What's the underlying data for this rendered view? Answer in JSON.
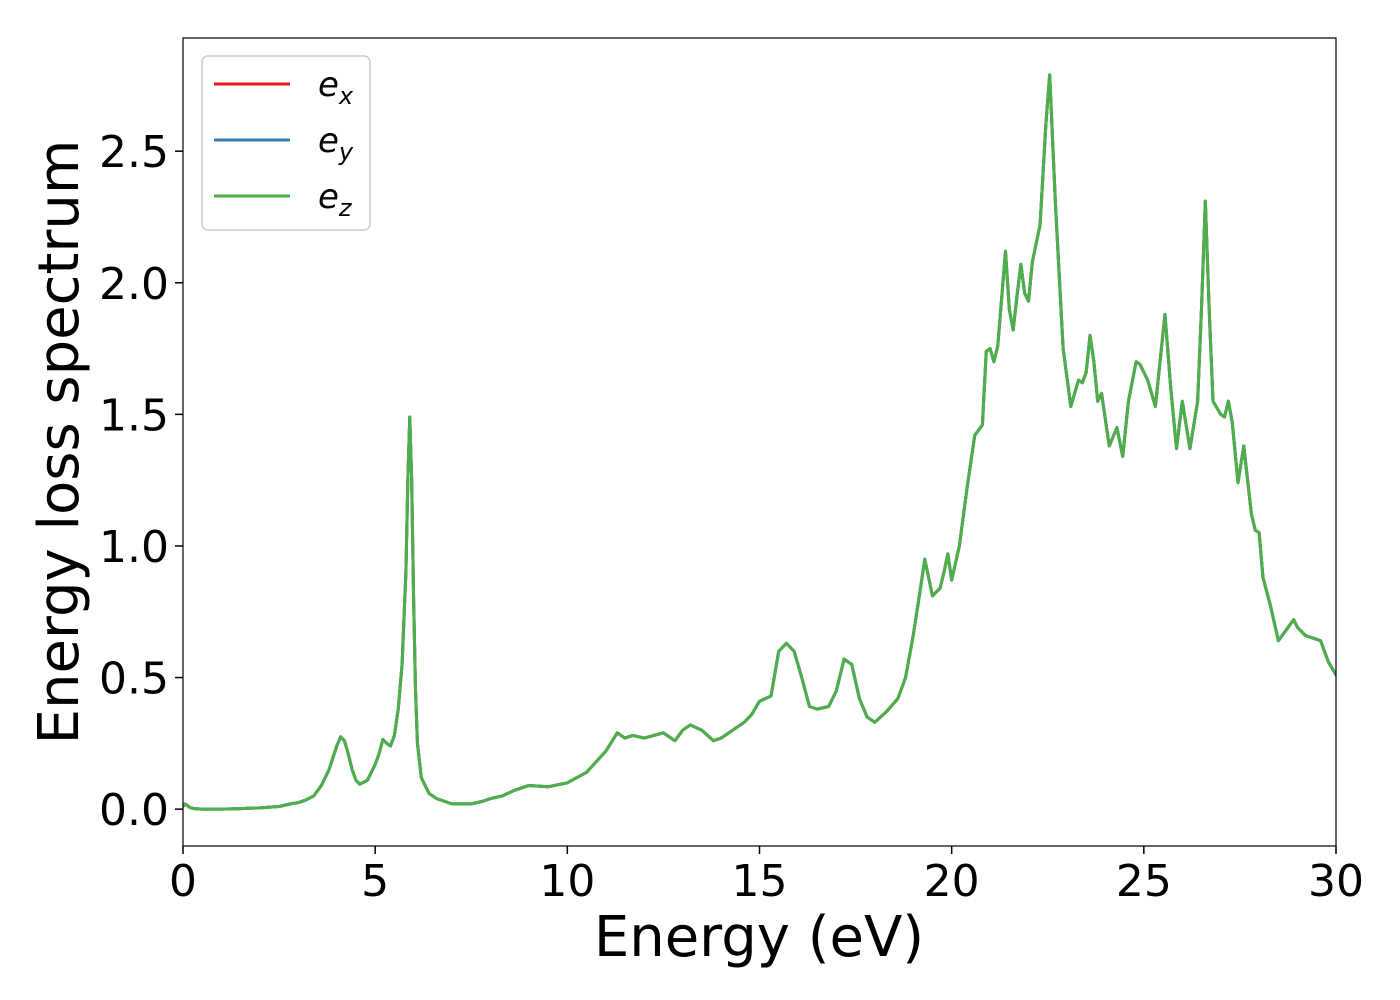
{
  "chart_data": {
    "type": "line",
    "title": "",
    "xlabel": "Energy (eV)",
    "ylabel": "Energy loss spectrum",
    "xlim": [
      0,
      30
    ],
    "ylim": [
      -0.14,
      2.93
    ],
    "xticks": [
      0,
      5,
      10,
      15,
      20,
      25,
      30
    ],
    "xtick_labels": [
      "0",
      "5",
      "10",
      "15",
      "20",
      "25",
      "30"
    ],
    "yticks": [
      0.0,
      0.5,
      1.0,
      1.5,
      2.0,
      2.5
    ],
    "ytick_labels": [
      "0.0",
      "0.5",
      "1.0",
      "1.5",
      "2.0",
      "2.5"
    ],
    "grid": false,
    "legend_position": "top-left",
    "colors": {
      "ex": "#e41a1c",
      "ey": "#377eb8",
      "ez": "#4daf4a"
    },
    "series": [
      {
        "name": "e_x",
        "label_base": "e",
        "label_sub": "x",
        "color": "#e41a1c",
        "x": [
          0,
          0.05,
          0.1,
          0.2,
          0.3,
          0.5,
          1.0,
          1.5,
          2.0,
          2.5,
          2.8,
          3.0,
          3.2,
          3.4,
          3.6,
          3.8,
          4.0,
          4.1,
          4.2,
          4.3,
          4.4,
          4.5,
          4.6,
          4.8,
          5.0,
          5.1,
          5.2,
          5.3,
          5.4,
          5.5,
          5.6,
          5.7,
          5.8,
          5.85,
          5.9,
          5.95,
          6.0,
          6.05,
          6.1,
          6.2,
          6.4,
          6.6,
          7.0,
          7.5,
          7.8,
          8.0,
          8.3,
          8.6,
          9.0,
          9.5,
          10.0,
          10.5,
          11.0,
          11.3,
          11.5,
          11.7,
          12.0,
          12.5,
          12.8,
          13.0,
          13.2,
          13.5,
          13.8,
          14.0,
          14.3,
          14.6,
          14.8,
          15.0,
          15.3,
          15.5,
          15.7,
          15.9,
          16.1,
          16.3,
          16.5,
          16.8,
          17.0,
          17.2,
          17.4,
          17.6,
          17.8,
          18.0,
          18.3,
          18.6,
          18.8,
          19.0,
          19.2,
          19.3,
          19.5,
          19.7,
          19.8,
          19.9,
          20.0,
          20.2,
          20.4,
          20.6,
          20.8,
          20.9,
          21.0,
          21.1,
          21.2,
          21.4,
          21.5,
          21.6,
          21.7,
          21.8,
          21.9,
          22.0,
          22.1,
          22.3,
          22.45,
          22.55,
          22.7,
          22.9,
          23.1,
          23.3,
          23.4,
          23.5,
          23.6,
          23.7,
          23.8,
          23.9,
          24.1,
          24.3,
          24.45,
          24.6,
          24.8,
          24.9,
          25.1,
          25.3,
          25.55,
          25.7,
          25.85,
          26.0,
          26.2,
          26.4,
          26.5,
          26.6,
          26.7,
          26.8,
          27.0,
          27.1,
          27.2,
          27.3,
          27.45,
          27.6,
          27.8,
          27.9,
          28.0,
          28.1,
          28.3,
          28.5,
          28.7,
          28.9,
          29.0,
          29.2,
          29.4,
          29.6,
          29.8,
          30.0
        ],
        "y": [
          0.01,
          0.02,
          0.015,
          0.005,
          0.002,
          0.0,
          0.0,
          0.002,
          0.005,
          0.01,
          0.02,
          0.025,
          0.035,
          0.05,
          0.09,
          0.15,
          0.24,
          0.275,
          0.26,
          0.21,
          0.15,
          0.11,
          0.095,
          0.11,
          0.17,
          0.21,
          0.265,
          0.25,
          0.24,
          0.28,
          0.38,
          0.55,
          0.9,
          1.25,
          1.49,
          1.25,
          0.8,
          0.45,
          0.25,
          0.12,
          0.06,
          0.04,
          0.02,
          0.02,
          0.03,
          0.04,
          0.05,
          0.07,
          0.09,
          0.085,
          0.1,
          0.14,
          0.22,
          0.29,
          0.27,
          0.28,
          0.27,
          0.29,
          0.26,
          0.3,
          0.32,
          0.3,
          0.26,
          0.27,
          0.3,
          0.33,
          0.36,
          0.41,
          0.43,
          0.6,
          0.63,
          0.6,
          0.5,
          0.39,
          0.38,
          0.39,
          0.45,
          0.57,
          0.55,
          0.42,
          0.35,
          0.33,
          0.37,
          0.42,
          0.5,
          0.66,
          0.85,
          0.95,
          0.81,
          0.84,
          0.9,
          0.97,
          0.87,
          1.0,
          1.22,
          1.42,
          1.46,
          1.74,
          1.75,
          1.7,
          1.76,
          2.12,
          1.9,
          1.82,
          1.95,
          2.07,
          1.96,
          1.93,
          2.08,
          2.22,
          2.6,
          2.79,
          2.3,
          1.75,
          1.53,
          1.63,
          1.62,
          1.66,
          1.8,
          1.7,
          1.55,
          1.58,
          1.38,
          1.45,
          1.34,
          1.55,
          1.7,
          1.69,
          1.63,
          1.53,
          1.88,
          1.6,
          1.37,
          1.55,
          1.37,
          1.55,
          1.9,
          2.31,
          1.9,
          1.55,
          1.5,
          1.49,
          1.55,
          1.47,
          1.24,
          1.38,
          1.12,
          1.06,
          1.05,
          0.88,
          0.77,
          0.64,
          0.68,
          0.72,
          0.69,
          0.66,
          0.65,
          0.64,
          0.56,
          0.51
        ]
      },
      {
        "name": "e_y",
        "label_base": "e",
        "label_sub": "y",
        "color": "#377eb8",
        "x": [
          0,
          0.05,
          0.1,
          0.2,
          0.3,
          0.5,
          1.0,
          1.5,
          2.0,
          2.5,
          2.8,
          3.0,
          3.2,
          3.4,
          3.6,
          3.8,
          4.0,
          4.1,
          4.2,
          4.3,
          4.4,
          4.5,
          4.6,
          4.8,
          5.0,
          5.1,
          5.2,
          5.3,
          5.4,
          5.5,
          5.6,
          5.7,
          5.8,
          5.85,
          5.9,
          5.95,
          6.0,
          6.05,
          6.1,
          6.2,
          6.4,
          6.6,
          7.0,
          7.5,
          7.8,
          8.0,
          8.3,
          8.6,
          9.0,
          9.5,
          10.0,
          10.5,
          11.0,
          11.3,
          11.5,
          11.7,
          12.0,
          12.5,
          12.8,
          13.0,
          13.2,
          13.5,
          13.8,
          14.0,
          14.3,
          14.6,
          14.8,
          15.0,
          15.3,
          15.5,
          15.7,
          15.9,
          16.1,
          16.3,
          16.5,
          16.8,
          17.0,
          17.2,
          17.4,
          17.6,
          17.8,
          18.0,
          18.3,
          18.6,
          18.8,
          19.0,
          19.2,
          19.3,
          19.5,
          19.7,
          19.8,
          19.9,
          20.0,
          20.2,
          20.4,
          20.6,
          20.8,
          20.9,
          21.0,
          21.1,
          21.2,
          21.4,
          21.5,
          21.6,
          21.7,
          21.8,
          21.9,
          22.0,
          22.1,
          22.3,
          22.45,
          22.55,
          22.7,
          22.9,
          23.1,
          23.3,
          23.4,
          23.5,
          23.6,
          23.7,
          23.8,
          23.9,
          24.1,
          24.3,
          24.45,
          24.6,
          24.8,
          24.9,
          25.1,
          25.3,
          25.55,
          25.7,
          25.85,
          26.0,
          26.2,
          26.4,
          26.5,
          26.6,
          26.7,
          26.8,
          27.0,
          27.1,
          27.2,
          27.3,
          27.45,
          27.6,
          27.8,
          27.9,
          28.0,
          28.1,
          28.3,
          28.5,
          28.7,
          28.9,
          29.0,
          29.2,
          29.4,
          29.6,
          29.8,
          30.0
        ],
        "y": [
          0.01,
          0.02,
          0.015,
          0.005,
          0.002,
          0.0,
          0.0,
          0.002,
          0.005,
          0.01,
          0.02,
          0.025,
          0.035,
          0.05,
          0.09,
          0.15,
          0.24,
          0.275,
          0.26,
          0.21,
          0.15,
          0.11,
          0.095,
          0.11,
          0.17,
          0.21,
          0.265,
          0.25,
          0.24,
          0.28,
          0.38,
          0.55,
          0.9,
          1.25,
          1.49,
          1.25,
          0.8,
          0.45,
          0.25,
          0.12,
          0.06,
          0.04,
          0.02,
          0.02,
          0.03,
          0.04,
          0.05,
          0.07,
          0.09,
          0.085,
          0.1,
          0.14,
          0.22,
          0.29,
          0.27,
          0.28,
          0.27,
          0.29,
          0.26,
          0.3,
          0.32,
          0.3,
          0.26,
          0.27,
          0.3,
          0.33,
          0.36,
          0.41,
          0.43,
          0.6,
          0.63,
          0.6,
          0.5,
          0.39,
          0.38,
          0.39,
          0.45,
          0.57,
          0.55,
          0.42,
          0.35,
          0.33,
          0.37,
          0.42,
          0.5,
          0.66,
          0.85,
          0.95,
          0.81,
          0.84,
          0.9,
          0.97,
          0.87,
          1.0,
          1.22,
          1.42,
          1.46,
          1.74,
          1.75,
          1.7,
          1.76,
          2.12,
          1.9,
          1.82,
          1.95,
          2.07,
          1.96,
          1.93,
          2.08,
          2.22,
          2.6,
          2.79,
          2.3,
          1.75,
          1.53,
          1.63,
          1.62,
          1.66,
          1.8,
          1.7,
          1.55,
          1.58,
          1.38,
          1.45,
          1.34,
          1.55,
          1.7,
          1.69,
          1.63,
          1.53,
          1.88,
          1.6,
          1.37,
          1.55,
          1.37,
          1.55,
          1.9,
          2.31,
          1.9,
          1.55,
          1.5,
          1.49,
          1.55,
          1.47,
          1.24,
          1.38,
          1.12,
          1.06,
          1.05,
          0.88,
          0.77,
          0.64,
          0.68,
          0.72,
          0.69,
          0.66,
          0.65,
          0.64,
          0.56,
          0.51
        ]
      },
      {
        "name": "e_z",
        "label_base": "e",
        "label_sub": "z",
        "color": "#4daf4a",
        "x": [
          0,
          0.05,
          0.1,
          0.2,
          0.3,
          0.5,
          1.0,
          1.5,
          2.0,
          2.5,
          2.8,
          3.0,
          3.2,
          3.4,
          3.6,
          3.8,
          4.0,
          4.1,
          4.2,
          4.3,
          4.4,
          4.5,
          4.6,
          4.8,
          5.0,
          5.1,
          5.2,
          5.3,
          5.4,
          5.5,
          5.6,
          5.7,
          5.8,
          5.85,
          5.9,
          5.95,
          6.0,
          6.05,
          6.1,
          6.2,
          6.4,
          6.6,
          7.0,
          7.5,
          7.8,
          8.0,
          8.3,
          8.6,
          9.0,
          9.5,
          10.0,
          10.5,
          11.0,
          11.3,
          11.5,
          11.7,
          12.0,
          12.5,
          12.8,
          13.0,
          13.2,
          13.5,
          13.8,
          14.0,
          14.3,
          14.6,
          14.8,
          15.0,
          15.3,
          15.5,
          15.7,
          15.9,
          16.1,
          16.3,
          16.5,
          16.8,
          17.0,
          17.2,
          17.4,
          17.6,
          17.8,
          18.0,
          18.3,
          18.6,
          18.8,
          19.0,
          19.2,
          19.3,
          19.5,
          19.7,
          19.8,
          19.9,
          20.0,
          20.2,
          20.4,
          20.6,
          20.8,
          20.9,
          21.0,
          21.1,
          21.2,
          21.4,
          21.5,
          21.6,
          21.7,
          21.8,
          21.9,
          22.0,
          22.1,
          22.3,
          22.45,
          22.55,
          22.7,
          22.9,
          23.1,
          23.3,
          23.4,
          23.5,
          23.6,
          23.7,
          23.8,
          23.9,
          24.1,
          24.3,
          24.45,
          24.6,
          24.8,
          24.9,
          25.1,
          25.3,
          25.55,
          25.7,
          25.85,
          26.0,
          26.2,
          26.4,
          26.5,
          26.6,
          26.7,
          26.8,
          27.0,
          27.1,
          27.2,
          27.3,
          27.45,
          27.6,
          27.8,
          27.9,
          28.0,
          28.1,
          28.3,
          28.5,
          28.7,
          28.9,
          29.0,
          29.2,
          29.4,
          29.6,
          29.8,
          30.0
        ],
        "y": [
          0.01,
          0.02,
          0.015,
          0.005,
          0.002,
          0.0,
          0.0,
          0.002,
          0.005,
          0.01,
          0.02,
          0.025,
          0.035,
          0.05,
          0.09,
          0.15,
          0.24,
          0.275,
          0.26,
          0.21,
          0.15,
          0.11,
          0.095,
          0.11,
          0.17,
          0.21,
          0.265,
          0.25,
          0.24,
          0.28,
          0.38,
          0.55,
          0.9,
          1.25,
          1.49,
          1.25,
          0.8,
          0.45,
          0.25,
          0.12,
          0.06,
          0.04,
          0.02,
          0.02,
          0.03,
          0.04,
          0.05,
          0.07,
          0.09,
          0.085,
          0.1,
          0.14,
          0.22,
          0.29,
          0.27,
          0.28,
          0.27,
          0.29,
          0.26,
          0.3,
          0.32,
          0.3,
          0.26,
          0.27,
          0.3,
          0.33,
          0.36,
          0.41,
          0.43,
          0.6,
          0.63,
          0.6,
          0.5,
          0.39,
          0.38,
          0.39,
          0.45,
          0.57,
          0.55,
          0.42,
          0.35,
          0.33,
          0.37,
          0.42,
          0.5,
          0.66,
          0.85,
          0.95,
          0.81,
          0.84,
          0.9,
          0.97,
          0.87,
          1.0,
          1.22,
          1.42,
          1.46,
          1.74,
          1.75,
          1.7,
          1.76,
          2.12,
          1.9,
          1.82,
          1.95,
          2.07,
          1.96,
          1.93,
          2.08,
          2.22,
          2.6,
          2.79,
          2.3,
          1.75,
          1.53,
          1.63,
          1.62,
          1.66,
          1.8,
          1.7,
          1.55,
          1.58,
          1.38,
          1.45,
          1.34,
          1.55,
          1.7,
          1.69,
          1.63,
          1.53,
          1.88,
          1.6,
          1.37,
          1.55,
          1.37,
          1.55,
          1.9,
          2.31,
          1.9,
          1.55,
          1.5,
          1.49,
          1.55,
          1.47,
          1.24,
          1.38,
          1.12,
          1.06,
          1.05,
          0.88,
          0.77,
          0.64,
          0.68,
          0.72,
          0.69,
          0.66,
          0.65,
          0.64,
          0.56,
          0.51
        ]
      }
    ]
  }
}
